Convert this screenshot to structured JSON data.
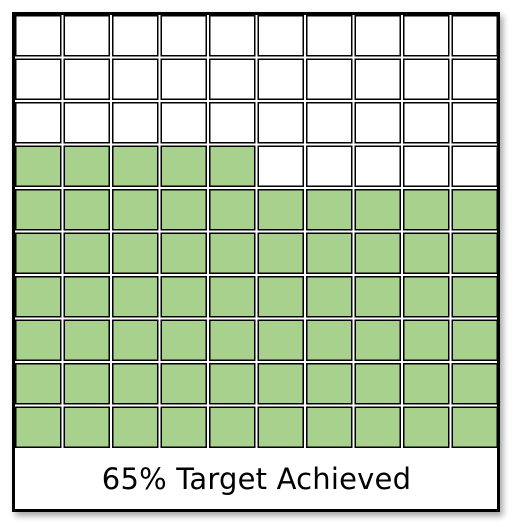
{
  "chart_data": {
    "type": "waffle",
    "rows": 10,
    "columns": 10,
    "total_cells": 100,
    "filled_cells": 65,
    "percent_achieved": 65,
    "fill_order": "bottom-up",
    "caption": "65% Target Achieved",
    "colors": {
      "filled": "#a9d18e",
      "empty": "#ffffff",
      "cell_border": "#000000",
      "frame_border": "#000000"
    }
  }
}
